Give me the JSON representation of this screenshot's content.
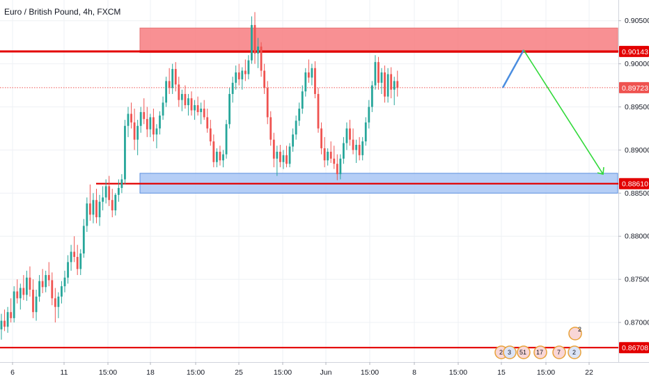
{
  "chart_data": {
    "type": "candlestick",
    "title": "Euro / British Pound, 4h, FXCM",
    "y_axis": {
      "range": [
        0.8654,
        0.9074
      ],
      "ticks": [
        "0.90500",
        "0.90000",
        "0.89500",
        "0.89000",
        "0.88500",
        "0.88000",
        "0.87500",
        "0.87000"
      ],
      "position": "right"
    },
    "x_axis": {
      "ticks": [
        "6",
        "11",
        "15:00",
        "18",
        "15:00",
        "25",
        "15:00",
        "Jun",
        "15:00",
        "8",
        "15:00",
        "15",
        "15:00",
        "22"
      ]
    },
    "price_labels": [
      {
        "value": "0.90143",
        "color": "#e30000"
      },
      {
        "value": "0.89723",
        "color": "#ef5350"
      },
      {
        "value": "0.88610",
        "color": "#e30000"
      },
      {
        "value": "0.86708",
        "color": "#e30000"
      }
    ],
    "horizontal_lines": [
      {
        "price": 0.90143,
        "color": "#e30000",
        "style": "solid"
      },
      {
        "price": 0.89723,
        "color": "#ef5350",
        "style": "dotted"
      },
      {
        "price": 0.8861,
        "color": "#e30000",
        "style": "solid"
      },
      {
        "price": 0.86708,
        "color": "#e30000",
        "style": "solid"
      }
    ],
    "zones": [
      {
        "name": "resistance",
        "from": 0.9013,
        "to": 0.90415,
        "color": "#f77c80"
      },
      {
        "name": "support",
        "from": 0.885,
        "to": 0.8873,
        "color": "#a8c5f5"
      }
    ],
    "arrows": [
      {
        "name": "up-projection",
        "from": 0.89723,
        "to": 0.9016,
        "color": "#4a8de0"
      },
      {
        "name": "down-projection",
        "from": 0.9016,
        "to": 0.8872,
        "color": "#31d93a"
      }
    ],
    "series": [
      {
        "values": [
          [
            0.8692,
            0.871,
            0.868,
            0.8702
          ],
          [
            0.8702,
            0.8715,
            0.869,
            0.8695
          ],
          [
            0.8695,
            0.8718,
            0.8688,
            0.8712
          ],
          [
            0.8712,
            0.8728,
            0.87,
            0.8705
          ],
          [
            0.8705,
            0.8742,
            0.87,
            0.8736
          ],
          [
            0.8736,
            0.875,
            0.8722,
            0.8728
          ],
          [
            0.8728,
            0.8745,
            0.8715,
            0.874
          ],
          [
            0.874,
            0.8755,
            0.8726,
            0.8732
          ],
          [
            0.8732,
            0.876,
            0.8725,
            0.8752
          ],
          [
            0.8752,
            0.8765,
            0.873,
            0.8738
          ],
          [
            0.8738,
            0.875,
            0.8705,
            0.8712
          ],
          [
            0.8712,
            0.8738,
            0.8702,
            0.873
          ],
          [
            0.873,
            0.8755,
            0.8724,
            0.8748
          ],
          [
            0.8748,
            0.8762,
            0.8734,
            0.8741
          ],
          [
            0.8741,
            0.876,
            0.8735,
            0.8755
          ],
          [
            0.8755,
            0.877,
            0.8742,
            0.8749
          ],
          [
            0.8749,
            0.8758,
            0.872,
            0.8728
          ],
          [
            0.8728,
            0.874,
            0.87,
            0.8718
          ],
          [
            0.8718,
            0.8735,
            0.8705,
            0.873
          ],
          [
            0.873,
            0.8748,
            0.8722,
            0.8742
          ],
          [
            0.8742,
            0.876,
            0.8735,
            0.8752
          ],
          [
            0.8752,
            0.8778,
            0.8745,
            0.877
          ],
          [
            0.877,
            0.879,
            0.876,
            0.8782
          ],
          [
            0.8782,
            0.88,
            0.877,
            0.8776
          ],
          [
            0.8776,
            0.879,
            0.8755,
            0.8762
          ],
          [
            0.8762,
            0.8785,
            0.8755,
            0.878
          ],
          [
            0.878,
            0.882,
            0.8775,
            0.8812
          ],
          [
            0.8812,
            0.8845,
            0.8805,
            0.8838
          ],
          [
            0.8838,
            0.886,
            0.8818,
            0.8825
          ],
          [
            0.8825,
            0.885,
            0.8815,
            0.8842
          ],
          [
            0.8842,
            0.8855,
            0.8815,
            0.8822
          ],
          [
            0.8822,
            0.8848,
            0.8812,
            0.884
          ],
          [
            0.884,
            0.8858,
            0.883,
            0.8845
          ],
          [
            0.8845,
            0.8866,
            0.8838,
            0.8858
          ],
          [
            0.8858,
            0.887,
            0.8835,
            0.8842
          ],
          [
            0.8842,
            0.8855,
            0.8822,
            0.883
          ],
          [
            0.883,
            0.885,
            0.8824,
            0.8848
          ],
          [
            0.8848,
            0.8866,
            0.884,
            0.8856
          ],
          [
            0.8856,
            0.8872,
            0.885,
            0.8866
          ],
          [
            0.8866,
            0.8935,
            0.886,
            0.8928
          ],
          [
            0.8928,
            0.895,
            0.8915,
            0.8942
          ],
          [
            0.8942,
            0.8955,
            0.8925,
            0.8932
          ],
          [
            0.8932,
            0.8948,
            0.89,
            0.8912
          ],
          [
            0.8912,
            0.8935,
            0.8894,
            0.8928
          ],
          [
            0.8928,
            0.895,
            0.892,
            0.8944
          ],
          [
            0.8944,
            0.896,
            0.893,
            0.8936
          ],
          [
            0.8936,
            0.895,
            0.8915,
            0.8924
          ],
          [
            0.8924,
            0.8942,
            0.8915,
            0.8938
          ],
          [
            0.8938,
            0.8948,
            0.891,
            0.8918
          ],
          [
            0.8918,
            0.893,
            0.8902,
            0.8925
          ],
          [
            0.8925,
            0.8945,
            0.8918,
            0.894
          ],
          [
            0.894,
            0.8962,
            0.8935,
            0.8955
          ],
          [
            0.8955,
            0.8985,
            0.895,
            0.898
          ],
          [
            0.898,
            0.8995,
            0.8965,
            0.8972
          ],
          [
            0.8972,
            0.9,
            0.8965,
            0.8994
          ],
          [
            0.8994,
            0.9002,
            0.8968,
            0.8976
          ],
          [
            0.8976,
            0.8985,
            0.895,
            0.8958
          ],
          [
            0.8958,
            0.897,
            0.8945,
            0.8965
          ],
          [
            0.8965,
            0.8975,
            0.8948,
            0.8952
          ],
          [
            0.8952,
            0.8965,
            0.894,
            0.896
          ],
          [
            0.896,
            0.8968,
            0.894,
            0.8946
          ],
          [
            0.8946,
            0.8958,
            0.8935,
            0.8952
          ],
          [
            0.8952,
            0.8962,
            0.894,
            0.8944
          ],
          [
            0.8944,
            0.8955,
            0.893,
            0.8948
          ],
          [
            0.8948,
            0.8958,
            0.8935,
            0.8938
          ],
          [
            0.8938,
            0.8948,
            0.892,
            0.8925
          ],
          [
            0.8925,
            0.8935,
            0.8905,
            0.891
          ],
          [
            0.891,
            0.8918,
            0.888,
            0.8886
          ],
          [
            0.8886,
            0.8902,
            0.888,
            0.8898
          ],
          [
            0.8898,
            0.8905,
            0.8882,
            0.8888
          ],
          [
            0.8888,
            0.89,
            0.888,
            0.8895
          ],
          [
            0.8895,
            0.8935,
            0.889,
            0.893
          ],
          [
            0.893,
            0.8972,
            0.8925,
            0.8965
          ],
          [
            0.8965,
            0.8985,
            0.8955,
            0.8978
          ],
          [
            0.8978,
            0.8998,
            0.897,
            0.899
          ],
          [
            0.899,
            0.9,
            0.8975,
            0.8982
          ],
          [
            0.8982,
            0.8996,
            0.897,
            0.8992
          ],
          [
            0.8992,
            0.9005,
            0.898,
            0.8988
          ],
          [
            0.8988,
            0.901,
            0.8982,
            0.9004
          ],
          [
            0.9004,
            0.9055,
            0.9,
            0.9045
          ],
          [
            0.9045,
            0.906,
            0.9,
            0.9012
          ],
          [
            0.9012,
            0.903,
            0.8995,
            0.902
          ],
          [
            0.902,
            0.9025,
            0.8985,
            0.8992
          ],
          [
            0.8992,
            0.9,
            0.8965,
            0.8972
          ],
          [
            0.8972,
            0.898,
            0.893,
            0.8938
          ],
          [
            0.8938,
            0.8945,
            0.8905,
            0.8912
          ],
          [
            0.8912,
            0.892,
            0.888,
            0.889
          ],
          [
            0.889,
            0.8905,
            0.887,
            0.8898
          ],
          [
            0.8898,
            0.8906,
            0.888,
            0.8886
          ],
          [
            0.8886,
            0.89,
            0.8878,
            0.8894
          ],
          [
            0.8894,
            0.8905,
            0.888,
            0.8884
          ],
          [
            0.8884,
            0.8908,
            0.888,
            0.8904
          ],
          [
            0.8904,
            0.8925,
            0.8898,
            0.8918
          ],
          [
            0.8918,
            0.894,
            0.8912,
            0.8934
          ],
          [
            0.8934,
            0.8955,
            0.8928,
            0.8948
          ],
          [
            0.8948,
            0.8975,
            0.8942,
            0.8968
          ],
          [
            0.8968,
            0.8995,
            0.8962,
            0.899
          ],
          [
            0.899,
            0.9005,
            0.8978,
            0.8984
          ],
          [
            0.8984,
            0.9,
            0.8975,
            0.8995
          ],
          [
            0.8995,
            0.9003,
            0.896,
            0.8965
          ],
          [
            0.8965,
            0.8972,
            0.892,
            0.8925
          ],
          [
            0.8925,
            0.8932,
            0.8895,
            0.8902
          ],
          [
            0.8902,
            0.8915,
            0.888,
            0.8888
          ],
          [
            0.8888,
            0.8902,
            0.8882,
            0.8898
          ],
          [
            0.8898,
            0.891,
            0.8885,
            0.889
          ],
          [
            0.889,
            0.8905,
            0.8878,
            0.8884
          ],
          [
            0.8884,
            0.8895,
            0.8865,
            0.8872
          ],
          [
            0.8872,
            0.8895,
            0.8866,
            0.889
          ],
          [
            0.889,
            0.8915,
            0.8884,
            0.8908
          ],
          [
            0.8908,
            0.8932,
            0.89,
            0.8925
          ],
          [
            0.8925,
            0.8935,
            0.8905,
            0.8912
          ],
          [
            0.8912,
            0.8925,
            0.8895,
            0.89
          ],
          [
            0.89,
            0.8912,
            0.8885,
            0.8906
          ],
          [
            0.8906,
            0.8915,
            0.8888,
            0.8894
          ],
          [
            0.8894,
            0.8915,
            0.8888,
            0.891
          ],
          [
            0.891,
            0.8938,
            0.8905,
            0.8932
          ],
          [
            0.8932,
            0.8958,
            0.8925,
            0.895
          ],
          [
            0.895,
            0.898,
            0.8944,
            0.8975
          ],
          [
            0.8975,
            0.901,
            0.897,
            0.9002
          ],
          [
            0.9002,
            0.9008,
            0.897,
            0.8978
          ],
          [
            0.8978,
            0.8995,
            0.8965,
            0.899
          ],
          [
            0.899,
            0.8998,
            0.8955,
            0.8962
          ],
          [
            0.8962,
            0.8995,
            0.8955,
            0.8988
          ],
          [
            0.8988,
            0.8996,
            0.896,
            0.897
          ],
          [
            0.897,
            0.8985,
            0.8952,
            0.898
          ],
          [
            0.898,
            0.8992,
            0.8962,
            0.8972
          ]
        ]
      }
    ]
  }
}
